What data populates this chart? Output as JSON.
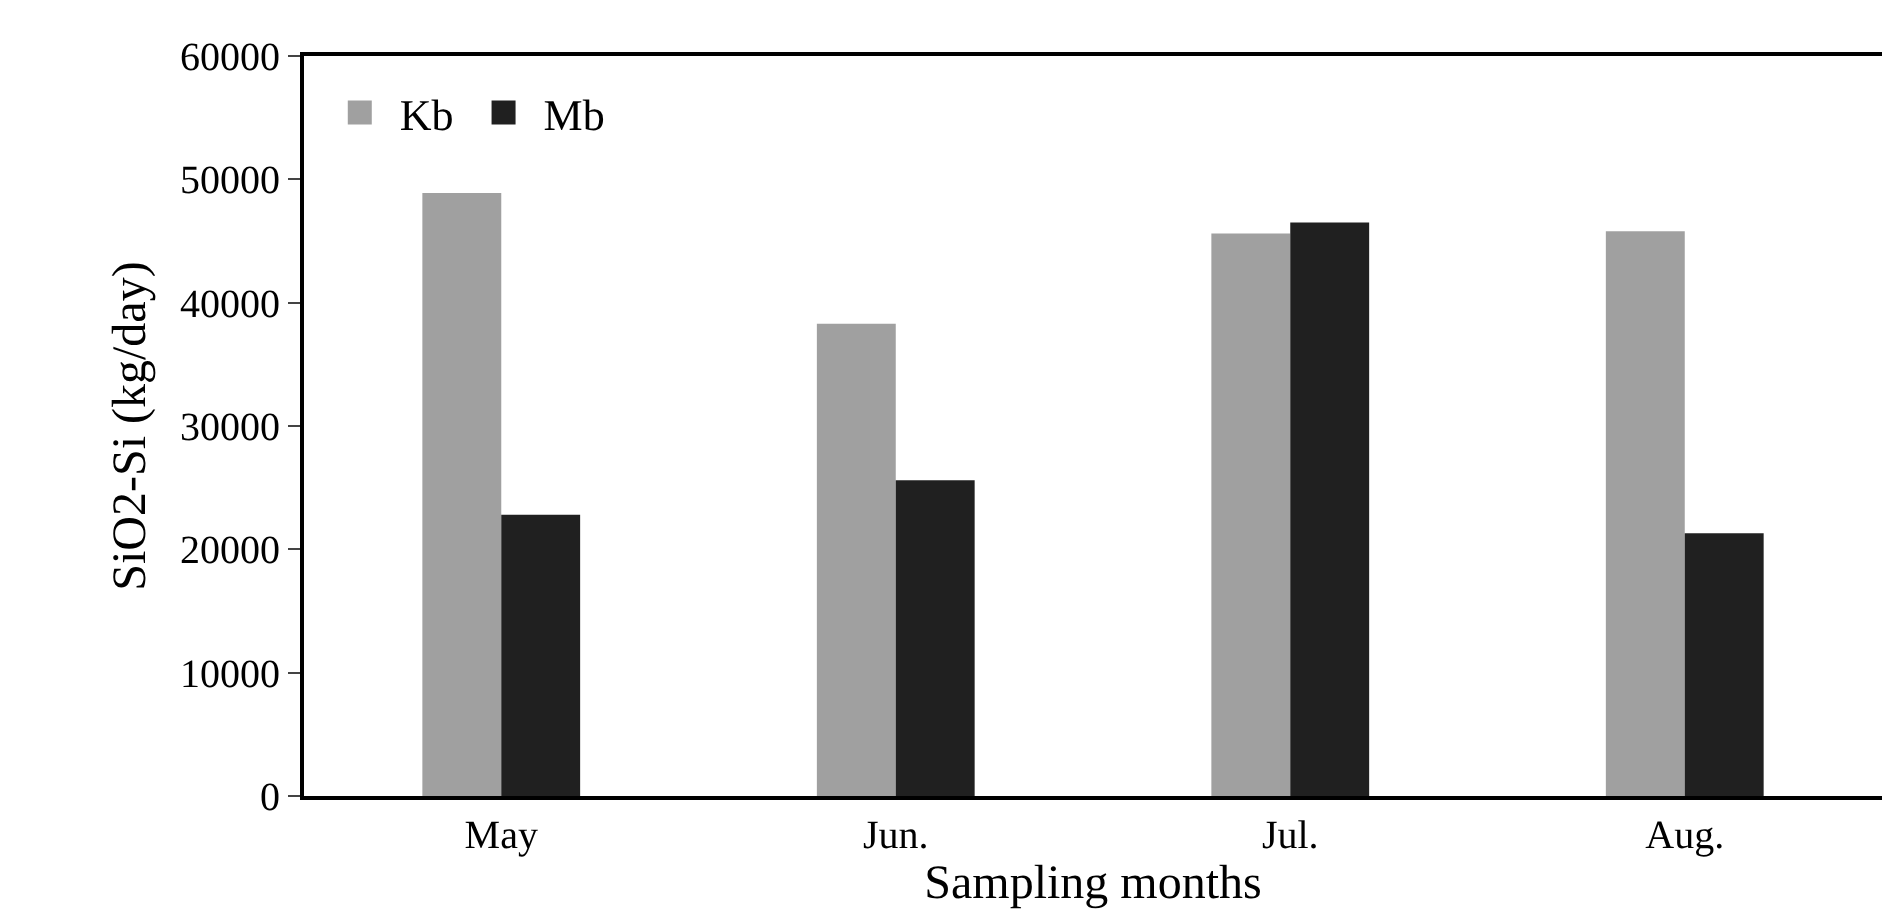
{
  "chart_data": {
    "type": "bar",
    "xlabel": "Sampling months",
    "ylabel": "SiO2-Si (kg/day)",
    "categories": [
      "May",
      "Jun.",
      "Jul.",
      "Aug."
    ],
    "series": [
      {
        "name": "Kb",
        "color": "#a0a0a0",
        "values": [
          48900,
          38300,
          45600,
          45800
        ]
      },
      {
        "name": "Mb",
        "color": "#202020",
        "values": [
          22800,
          25600,
          46500,
          21300
        ]
      }
    ],
    "ylim": [
      0,
      60000
    ],
    "yticks": [
      0,
      10000,
      20000,
      30000,
      40000,
      50000,
      60000
    ],
    "grid": false,
    "legend": "top left"
  }
}
